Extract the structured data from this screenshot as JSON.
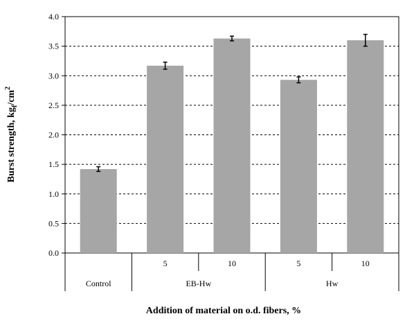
{
  "chart_data": {
    "type": "bar",
    "xlabel": "Addition of material on o.d. fibers, %",
    "ylabel": "Burst strength, kg",
    "ylabel_sub": "f",
    "ylabel_end": "/cm",
    "ylabel_sup": "2",
    "ylim": [
      0,
      4.0
    ],
    "yticks": [
      "0.0",
      "0.5",
      "1.0",
      "1.5",
      "2.0",
      "2.5",
      "3.0",
      "3.5",
      "4.0"
    ],
    "ytick_values": [
      0,
      0.5,
      1.0,
      1.5,
      2.0,
      2.5,
      3.0,
      3.5,
      4.0
    ],
    "grid": "horizontal-dashed",
    "bar_color": "#a6a6a6",
    "categories": [
      {
        "level1": "",
        "level2": "Control",
        "value": 1.42,
        "error": 0.04
      },
      {
        "level1": "5",
        "level2": "EB-Hw",
        "value": 3.17,
        "error": 0.06
      },
      {
        "level1": "10",
        "level2": "EB-Hw",
        "value": 3.63,
        "error": 0.04
      },
      {
        "level1": "5",
        "level2": "Hw",
        "value": 2.93,
        "error": 0.05
      },
      {
        "level1": "10",
        "level2": "Hw",
        "value": 3.6,
        "error": 0.1
      }
    ],
    "groups": [
      {
        "label": "Control",
        "span": 1
      },
      {
        "label": "EB-Hw",
        "span": 2
      },
      {
        "label": "Hw",
        "span": 2
      }
    ]
  }
}
